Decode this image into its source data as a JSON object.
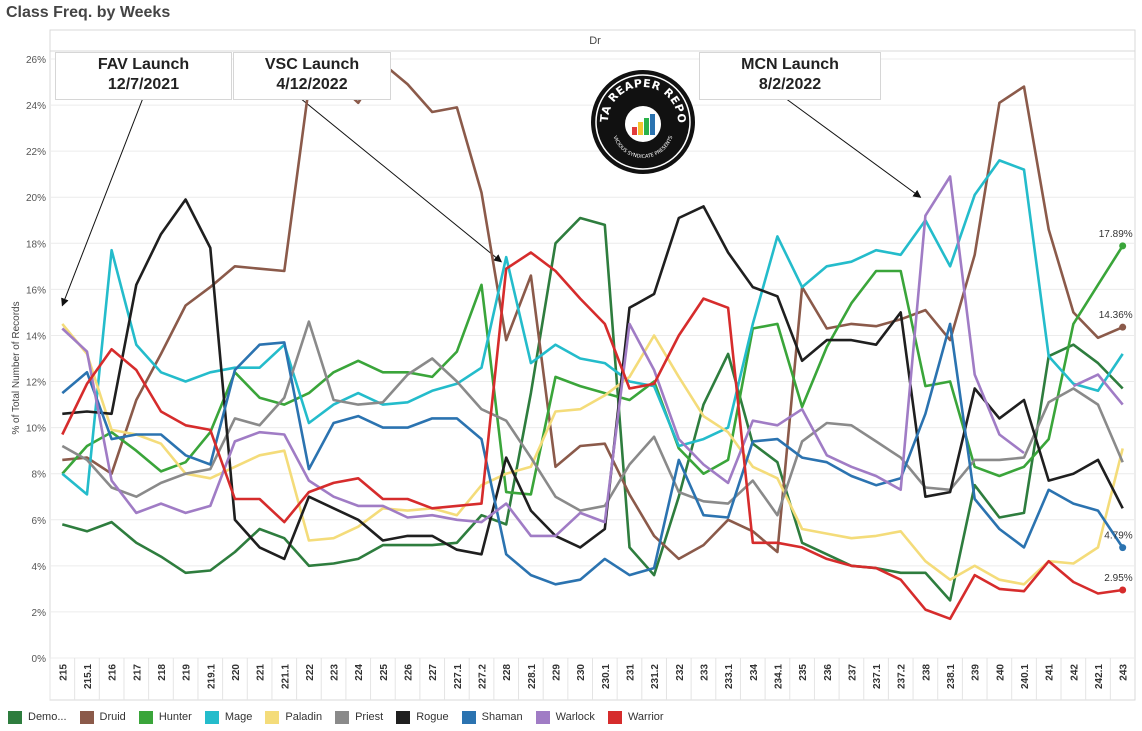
{
  "title": "Class Freq. by Weeks",
  "header_label": "Dr",
  "ylabel": "% of Total Number of Records",
  "annotations": [
    {
      "line1": "FAV Launch",
      "line2": "12/7/2021"
    },
    {
      "line1": "VSC Launch",
      "line2": "4/12/2022"
    },
    {
      "line1": "MCN Launch",
      "line2": "8/2/2022"
    }
  ],
  "logo": {
    "line1": "DATA REAPER REPORT",
    "line2": "VICIOUS SYNDICATE PRESENTS"
  },
  "colors": {
    "Demo...": "#2e7d3e",
    "Druid": "#8b5a4a",
    "Hunter": "#3aa53a",
    "Mage": "#24bccb",
    "Paladin": "#f4dc7a",
    "Priest": "#8a8a8a",
    "Rogue": "#1f1f1f",
    "Shaman": "#2b73b0",
    "Warlock": "#a07cc5",
    "Warrior": "#d62c2c"
  },
  "legend": [
    "Demo...",
    "Druid",
    "Hunter",
    "Mage",
    "Paladin",
    "Priest",
    "Rogue",
    "Shaman",
    "Warlock",
    "Warrior"
  ],
  "chart_data": {
    "type": "line",
    "title": "Class Freq. by Weeks",
    "xlabel": "",
    "ylabel": "% of Total Number of Records",
    "ylim": [
      0,
      26
    ],
    "yticks": [
      0,
      2,
      4,
      6,
      8,
      10,
      12,
      14,
      16,
      18,
      20,
      22,
      24,
      26
    ],
    "ytick_labels": [
      "0%",
      "2%",
      "4%",
      "6%",
      "8%",
      "10%",
      "12%",
      "14%",
      "16%",
      "18%",
      "20%",
      "22%",
      "24%",
      "26%"
    ],
    "grid": true,
    "legend_position": "bottom",
    "x": [
      "215",
      "215.1",
      "216",
      "217",
      "218",
      "219",
      "219.1",
      "220",
      "221",
      "221.1",
      "222",
      "223",
      "224",
      "225",
      "226",
      "227",
      "227.1",
      "227.2",
      "228",
      "228.1",
      "229",
      "230",
      "230.1",
      "231",
      "231.2",
      "232",
      "233",
      "233.1",
      "234",
      "234.1",
      "235",
      "236",
      "237",
      "237.1",
      "237.2",
      "238",
      "238.1",
      "239",
      "240",
      "240.1",
      "241",
      "242",
      "242.1",
      "243"
    ],
    "end_labels": [
      {
        "series": "Hunter",
        "text": "17.89%"
      },
      {
        "series": "Druid",
        "text": "14.36%"
      },
      {
        "series": "Shaman",
        "text": "4.79%"
      },
      {
        "series": "Warrior",
        "text": "2.95%"
      }
    ],
    "series": [
      {
        "name": "Demo...",
        "values": [
          5.8,
          5.5,
          5.9,
          5.0,
          4.4,
          3.7,
          3.8,
          4.6,
          5.6,
          5.2,
          4.0,
          4.1,
          4.3,
          4.9,
          4.9,
          4.9,
          5.0,
          6.2,
          5.8,
          11.5,
          18.0,
          19.1,
          18.8,
          4.8,
          3.6,
          7.0,
          11.0,
          13.2,
          9.3,
          8.5,
          5.0,
          4.5,
          4.0,
          3.9,
          3.7,
          3.7,
          2.5,
          7.5,
          6.1,
          6.3,
          13.1,
          13.6,
          12.8,
          11.7
        ]
      },
      {
        "name": "Druid",
        "values": [
          8.6,
          8.7,
          8.0,
          11.2,
          13.2,
          15.3,
          16.1,
          17.0,
          16.9,
          16.8,
          24.8,
          25.1,
          24.1,
          25.8,
          24.9,
          23.7,
          23.9,
          20.2,
          13.8,
          16.6,
          8.3,
          9.2,
          9.3,
          7.1,
          5.3,
          4.3,
          4.9,
          6.0,
          5.5,
          4.6,
          16.1,
          14.3,
          14.5,
          14.4,
          14.7,
          15.1,
          13.8,
          17.5,
          24.1,
          24.8,
          18.6,
          15.0,
          13.9,
          14.36
        ]
      },
      {
        "name": "Hunter",
        "values": [
          8.0,
          9.2,
          9.8,
          9.0,
          8.1,
          8.5,
          9.8,
          12.4,
          11.3,
          11.0,
          11.5,
          12.4,
          12.9,
          12.4,
          12.4,
          12.2,
          13.3,
          16.2,
          7.2,
          7.1,
          12.2,
          11.8,
          11.5,
          11.2,
          12.0,
          9.1,
          8.0,
          8.6,
          14.3,
          14.5,
          10.9,
          13.5,
          15.4,
          16.8,
          16.8,
          11.8,
          12.0,
          8.3,
          7.9,
          8.3,
          9.5,
          14.5,
          16.2,
          17.89
        ]
      },
      {
        "name": "Mage",
        "values": [
          8.0,
          7.1,
          17.7,
          13.6,
          12.4,
          12.0,
          12.4,
          12.6,
          12.6,
          13.6,
          10.2,
          11.0,
          11.5,
          11.0,
          11.1,
          11.6,
          11.9,
          12.6,
          17.4,
          12.8,
          13.6,
          13.0,
          12.8,
          12.0,
          11.8,
          9.2,
          9.5,
          10.0,
          14.5,
          18.3,
          16.1,
          17.0,
          17.2,
          17.7,
          17.5,
          19.0,
          17.0,
          20.1,
          21.6,
          21.2,
          13.1,
          11.9,
          11.6,
          13.2
        ]
      },
      {
        "name": "Paladin",
        "values": [
          14.5,
          13.2,
          9.9,
          9.7,
          9.3,
          8.0,
          7.8,
          8.3,
          8.8,
          9.0,
          5.1,
          5.2,
          5.7,
          6.5,
          6.4,
          6.5,
          6.2,
          7.5,
          8.0,
          8.3,
          10.7,
          10.8,
          11.4,
          12.2,
          14.0,
          12.2,
          10.5,
          9.8,
          8.3,
          7.8,
          5.6,
          5.4,
          5.2,
          5.3,
          5.5,
          4.2,
          3.4,
          4.0,
          3.4,
          3.2,
          4.2,
          4.1,
          4.8,
          9.1
        ]
      },
      {
        "name": "Priest",
        "values": [
          9.2,
          8.6,
          7.4,
          7.0,
          7.6,
          8.0,
          8.2,
          10.4,
          10.1,
          11.3,
          14.6,
          11.2,
          11.0,
          11.1,
          12.3,
          13.0,
          12.0,
          10.8,
          10.3,
          8.7,
          7.0,
          6.4,
          6.6,
          8.4,
          9.6,
          7.2,
          6.8,
          6.7,
          7.7,
          6.2,
          9.4,
          10.2,
          10.1,
          9.4,
          8.7,
          7.4,
          7.3,
          8.6,
          8.6,
          8.7,
          11.1,
          11.7,
          11.0,
          8.5
        ]
      },
      {
        "name": "Rogue",
        "values": [
          10.6,
          10.7,
          10.6,
          16.2,
          18.4,
          19.9,
          17.8,
          6.0,
          4.8,
          4.3,
          7.0,
          6.5,
          6.0,
          5.1,
          5.3,
          5.3,
          4.7,
          4.5,
          8.7,
          6.4,
          5.3,
          4.8,
          5.6,
          15.2,
          15.8,
          19.1,
          19.6,
          17.6,
          16.1,
          15.7,
          12.9,
          13.8,
          13.8,
          13.6,
          15.0,
          7.0,
          7.2,
          11.7,
          10.4,
          11.2,
          7.7,
          8.0,
          8.6,
          6.5
        ]
      },
      {
        "name": "Shaman",
        "values": [
          11.5,
          12.4,
          9.5,
          9.7,
          9.7,
          8.8,
          8.4,
          12.5,
          13.6,
          13.7,
          8.2,
          10.2,
          10.5,
          10.0,
          10.0,
          10.4,
          10.4,
          9.5,
          4.5,
          3.6,
          3.2,
          3.4,
          4.3,
          3.6,
          3.9,
          8.6,
          6.2,
          6.1,
          9.4,
          9.5,
          8.7,
          8.5,
          7.9,
          7.5,
          7.8,
          10.6,
          14.5,
          6.9,
          5.6,
          4.8,
          7.3,
          6.7,
          6.4,
          4.79
        ]
      },
      {
        "name": "Warlock",
        "values": [
          14.3,
          13.3,
          7.7,
          6.3,
          6.7,
          6.3,
          6.6,
          9.4,
          9.8,
          9.7,
          7.7,
          7.0,
          6.6,
          6.6,
          6.1,
          6.2,
          6.0,
          5.9,
          6.7,
          5.3,
          5.3,
          6.3,
          5.9,
          14.5,
          12.5,
          9.5,
          8.4,
          7.6,
          10.3,
          10.1,
          10.8,
          8.8,
          8.3,
          7.9,
          7.3,
          19.2,
          20.9,
          12.3,
          9.7,
          8.9,
          null,
          11.8,
          12.3,
          11.0
        ]
      },
      {
        "name": "Warrior",
        "values": [
          9.7,
          11.9,
          13.4,
          12.5,
          10.7,
          10.1,
          9.9,
          6.9,
          6.9,
          5.9,
          7.2,
          7.6,
          7.8,
          6.9,
          6.9,
          6.5,
          6.6,
          6.7,
          16.9,
          17.6,
          16.8,
          15.6,
          14.5,
          11.7,
          11.9,
          14.0,
          15.6,
          15.2,
          5.0,
          5.0,
          4.8,
          4.3,
          4.0,
          3.9,
          3.4,
          2.1,
          1.7,
          3.6,
          3.0,
          2.9,
          4.2,
          3.3,
          2.8,
          2.95
        ]
      }
    ]
  }
}
